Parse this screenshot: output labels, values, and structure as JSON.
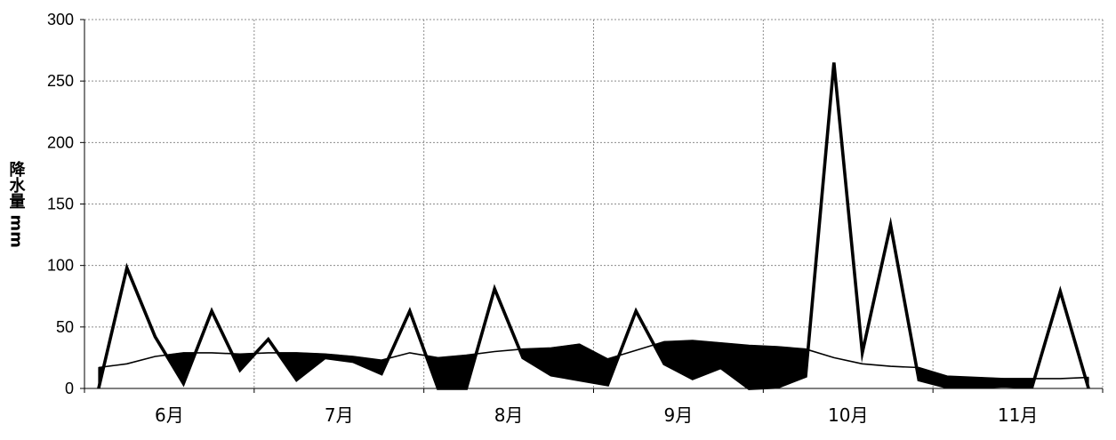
{
  "chart_data": {
    "type": "line",
    "title": "",
    "xlabel": "",
    "ylabel": "降水量 mm",
    "ylim": [
      0,
      300
    ],
    "yticks": [
      0,
      50,
      100,
      150,
      200,
      250,
      300
    ],
    "grid": true,
    "legend": "none",
    "months": [
      "6月",
      "7月",
      "8月",
      "9月",
      "10月",
      "11月"
    ],
    "periods_per_month": 6,
    "series": [
      {
        "values": [
          0,
          98,
          42,
          4,
          63,
          15,
          40,
          7,
          25,
          22,
          12,
          63,
          0,
          0,
          81,
          25,
          11,
          7,
          3,
          63,
          20,
          8,
          17,
          0,
          1,
          10,
          265,
          29,
          133,
          7,
          1,
          1,
          2,
          1,
          79,
          0
        ]
      },
      {
        "values": [
          17,
          20,
          26,
          29,
          29,
          28,
          29,
          29,
          28,
          26,
          23,
          29,
          25,
          27,
          30,
          32,
          33,
          36,
          24,
          31,
          38,
          39,
          37,
          35,
          34,
          32,
          25,
          20,
          18,
          17,
          10,
          9,
          8,
          8,
          8,
          9
        ]
      }
    ]
  }
}
